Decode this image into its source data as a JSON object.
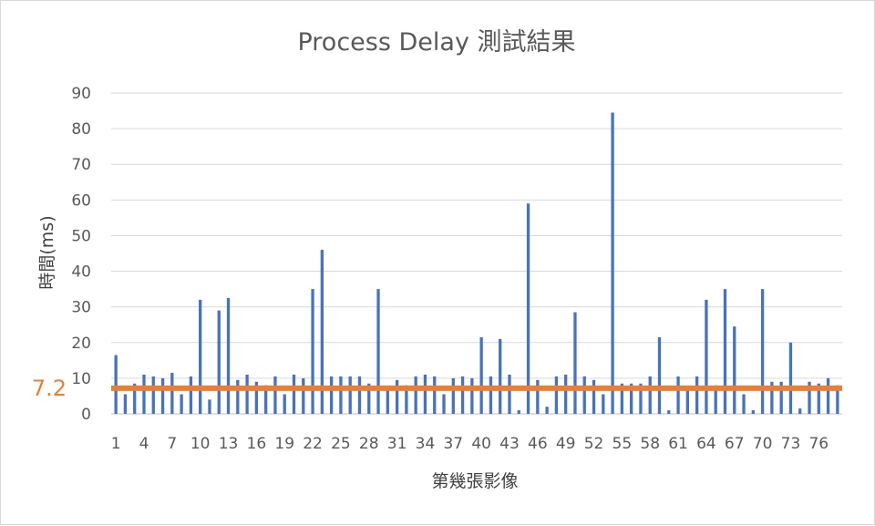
{
  "chart_data": {
    "type": "bar",
    "title": "Process Delay 測試結果",
    "xlabel": "第幾張影像",
    "ylabel": "時間(ms)",
    "ylim": [
      0,
      90
    ],
    "yticks": [
      0,
      10,
      20,
      30,
      40,
      50,
      60,
      70,
      80,
      90
    ],
    "grid": true,
    "legend": "none",
    "categories": [
      1,
      2,
      3,
      4,
      5,
      6,
      7,
      8,
      9,
      10,
      11,
      12,
      13,
      14,
      15,
      16,
      17,
      18,
      19,
      20,
      21,
      22,
      23,
      24,
      25,
      26,
      27,
      28,
      29,
      30,
      31,
      32,
      33,
      34,
      35,
      36,
      37,
      38,
      39,
      40,
      41,
      42,
      43,
      44,
      45,
      46,
      47,
      48,
      49,
      50,
      51,
      52,
      53,
      54,
      55,
      56,
      57,
      58,
      59,
      60,
      61,
      62,
      63,
      64,
      65,
      66,
      67,
      68,
      69,
      70,
      71,
      72,
      73,
      74,
      75,
      76,
      77,
      78
    ],
    "xtick_labels": [
      "1",
      "4",
      "7",
      "10",
      "13",
      "16",
      "19",
      "22",
      "25",
      "28",
      "31",
      "34",
      "37",
      "40",
      "43",
      "46",
      "49",
      "52",
      "55",
      "58",
      "61",
      "64",
      "67",
      "70",
      "73",
      "76"
    ],
    "series": [
      {
        "color": "#4472C4",
        "values": [
          16.5,
          5.5,
          8.5,
          11,
          10.5,
          10,
          11.5,
          5.5,
          10.5,
          32,
          4,
          29,
          32.5,
          9.5,
          11,
          9,
          8,
          10.5,
          5.5,
          11,
          10,
          35,
          46,
          10.5,
          10.5,
          10.5,
          10.5,
          8.5,
          35,
          7,
          9.5,
          8,
          10.5,
          11,
          10.5,
          5.5,
          10,
          10.5,
          10,
          21.5,
          10.5,
          21,
          11,
          1,
          59,
          9.5,
          2,
          10.5,
          11,
          28.5,
          10.5,
          9.5,
          5.5,
          84.5,
          8.5,
          8.5,
          8.5,
          10.5,
          21.5,
          1,
          10.5,
          7.5,
          10.5,
          32,
          8,
          35,
          24.5,
          5.5,
          1,
          35,
          9,
          9,
          20,
          1.5,
          9,
          8.5,
          10,
          8
        ]
      }
    ],
    "reference_line": {
      "value": 7.2,
      "label": "7.2",
      "color": "#ED7D31"
    }
  }
}
